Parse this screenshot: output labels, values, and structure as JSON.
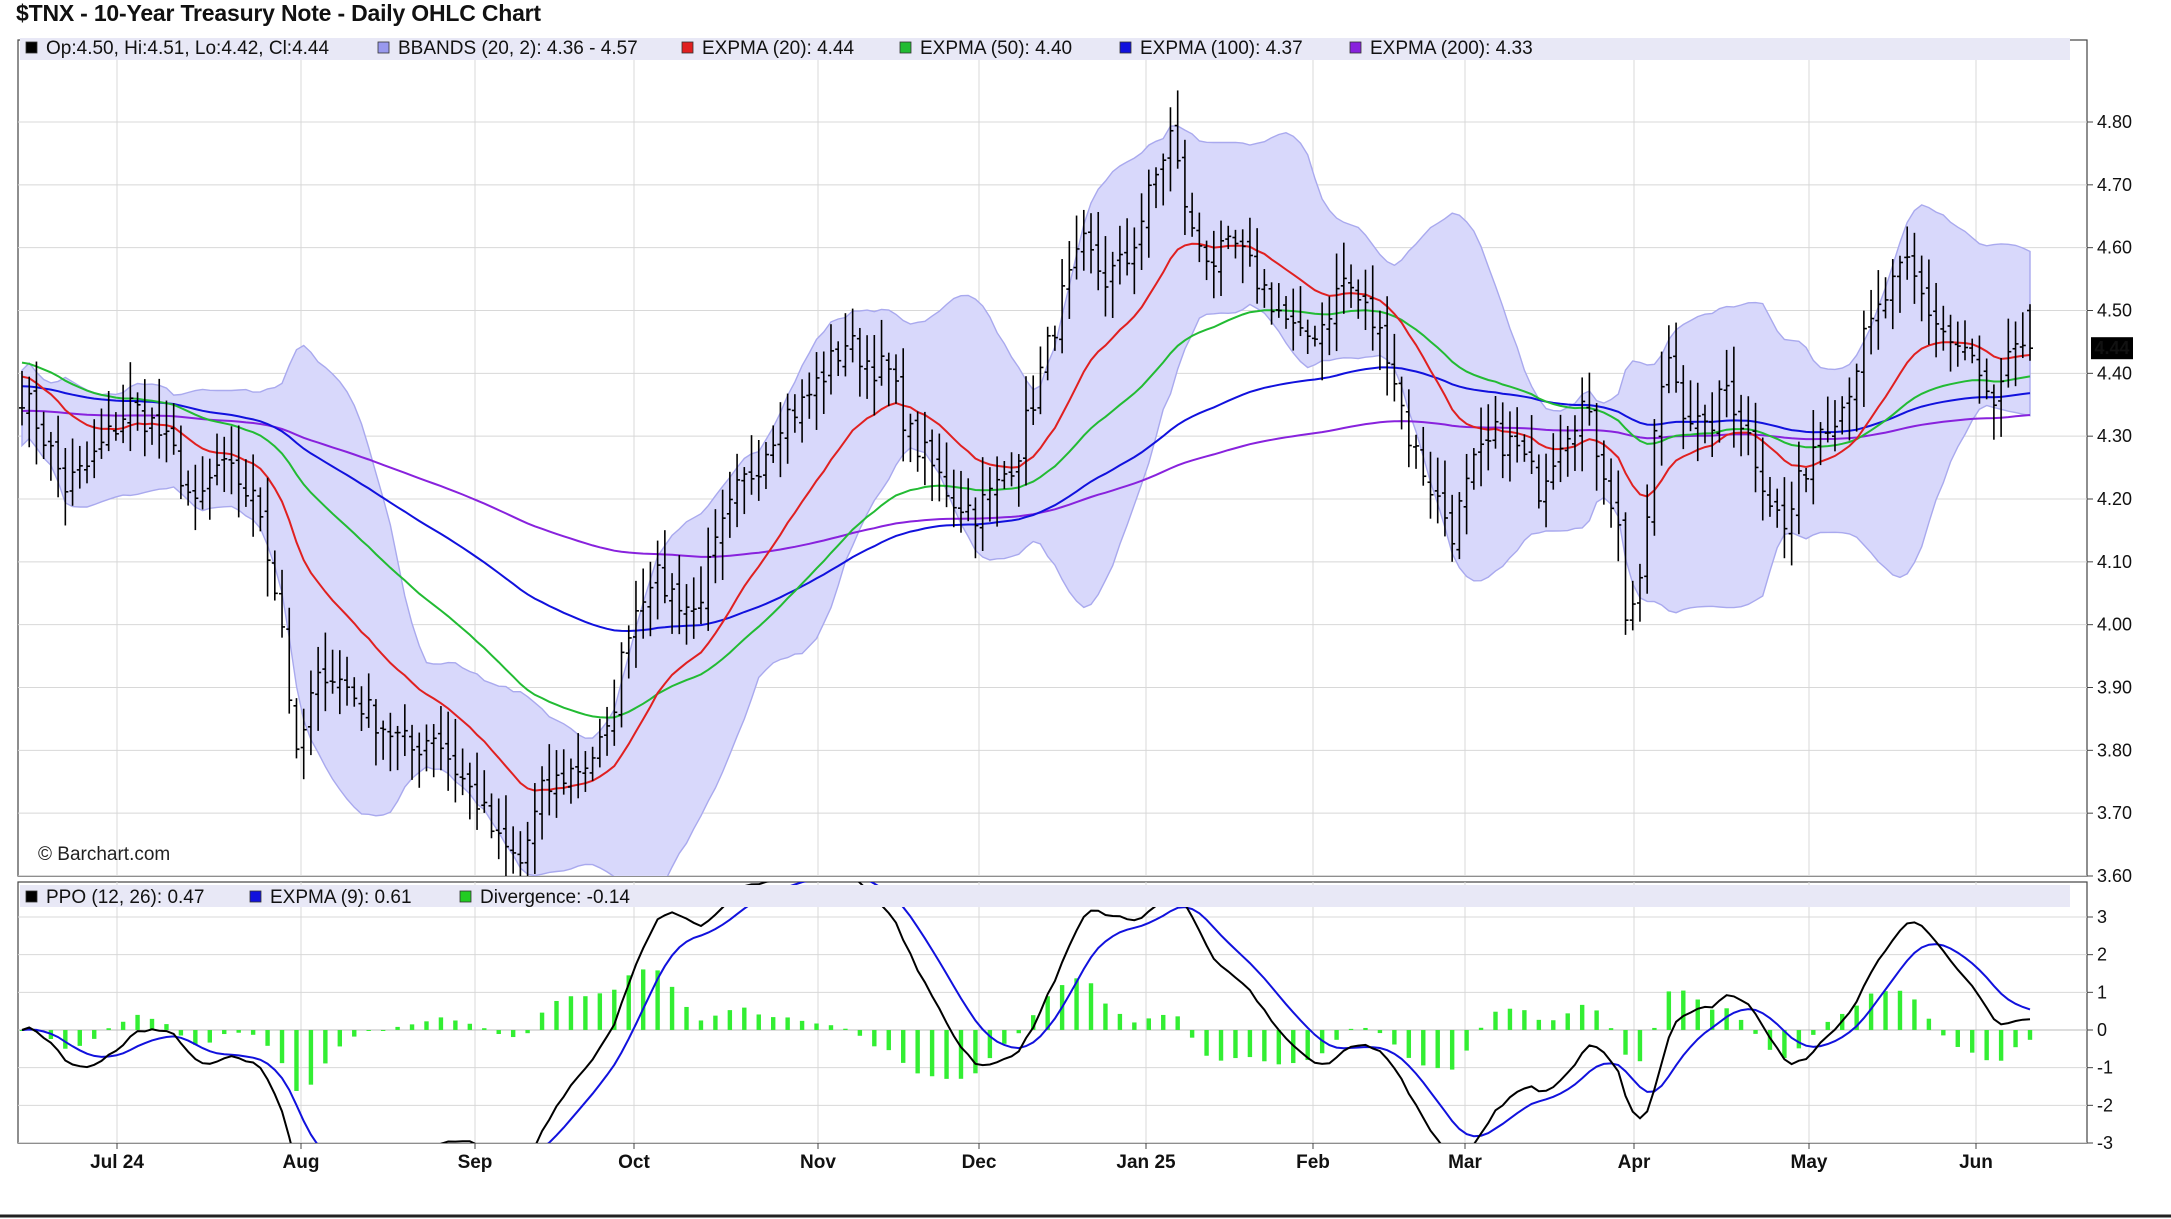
{
  "chart_data": [
    {
      "type": "ohlc",
      "title": "$TNX - 10-Year Treasury Note - Daily OHLC Chart",
      "credit": "© Barchart.com",
      "ylim": [
        3.6,
        4.8
      ],
      "yticks": [
        "4.80",
        "4.70",
        "4.60",
        "4.50",
        "4.40",
        "4.30",
        "4.20",
        "4.10",
        "4.00",
        "3.90",
        "3.80",
        "3.70",
        "3.60"
      ],
      "xticks": [
        "Jul 24",
        "Aug",
        "Sep",
        "Oct",
        "Nov",
        "Dec",
        "Jan 25",
        "Feb",
        "Mar",
        "Apr",
        "May",
        "Jun"
      ],
      "last_price_label": "4.44",
      "legend": [
        {
          "text": "Op:4.50, Hi:4.51, Lo:4.42, Cl:4.44",
          "color": "#000000"
        },
        {
          "text": "BBANDS (20, 2): 4.36 - 4.57",
          "color": "#9999ee"
        },
        {
          "text": "EXPMA (20): 4.44",
          "color": "#e02020"
        },
        {
          "text": "EXPMA (50): 4.40",
          "color": "#22bb33"
        },
        {
          "text": "EXPMA (100): 4.37",
          "color": "#1111dd"
        },
        {
          "text": "EXPMA (200): 4.33",
          "color": "#8822dd"
        }
      ],
      "close_anchors": [
        [
          0,
          4.37
        ],
        [
          3,
          4.3
        ],
        [
          6,
          4.22
        ],
        [
          9,
          4.25
        ],
        [
          12,
          4.3
        ],
        [
          15,
          4.35
        ],
        [
          18,
          4.32
        ],
        [
          21,
          4.27
        ],
        [
          24,
          4.18
        ],
        [
          27,
          4.25
        ],
        [
          30,
          4.23
        ],
        [
          33,
          4.18
        ],
        [
          36,
          4.0
        ],
        [
          38,
          3.78
        ],
        [
          40,
          3.88
        ],
        [
          42,
          3.93
        ],
        [
          45,
          3.9
        ],
        [
          48,
          3.86
        ],
        [
          51,
          3.83
        ],
        [
          54,
          3.8
        ],
        [
          57,
          3.83
        ],
        [
          60,
          3.77
        ],
        [
          63,
          3.72
        ],
        [
          66,
          3.65
        ],
        [
          69,
          3.62
        ],
        [
          72,
          3.73
        ],
        [
          75,
          3.76
        ],
        [
          78,
          3.78
        ],
        [
          81,
          3.82
        ],
        [
          84,
          4.0
        ],
        [
          87,
          4.08
        ],
        [
          90,
          4.05
        ],
        [
          93,
          4.02
        ],
        [
          96,
          4.12
        ],
        [
          99,
          4.21
        ],
        [
          102,
          4.26
        ],
        [
          105,
          4.33
        ],
        [
          108,
          4.35
        ],
        [
          111,
          4.4
        ],
        [
          114,
          4.45
        ],
        [
          117,
          4.42
        ],
        [
          120,
          4.4
        ],
        [
          123,
          4.3
        ],
        [
          126,
          4.25
        ],
        [
          129,
          4.2
        ],
        [
          132,
          4.18
        ],
        [
          135,
          4.22
        ],
        [
          138,
          4.28
        ],
        [
          141,
          4.4
        ],
        [
          144,
          4.52
        ],
        [
          147,
          4.6
        ],
        [
          150,
          4.55
        ],
        [
          153,
          4.58
        ],
        [
          156,
          4.68
        ],
        [
          159,
          4.78
        ],
        [
          162,
          4.62
        ],
        [
          165,
          4.58
        ],
        [
          168,
          4.6
        ],
        [
          171,
          4.55
        ],
        [
          174,
          4.5
        ],
        [
          177,
          4.45
        ],
        [
          180,
          4.48
        ],
        [
          183,
          4.55
        ],
        [
          186,
          4.5
        ],
        [
          189,
          4.44
        ],
        [
          192,
          4.3
        ],
        [
          195,
          4.22
        ],
        [
          198,
          4.15
        ],
        [
          201,
          4.25
        ],
        [
          204,
          4.3
        ],
        [
          207,
          4.28
        ],
        [
          210,
          4.22
        ],
        [
          213,
          4.3
        ],
        [
          216,
          4.35
        ],
        [
          219,
          4.25
        ],
        [
          221,
          4.15
        ],
        [
          222,
          4.02
        ],
        [
          224,
          4.05
        ],
        [
          226,
          4.3
        ],
        [
          228,
          4.43
        ],
        [
          230,
          4.35
        ],
        [
          233,
          4.3
        ],
        [
          236,
          4.38
        ],
        [
          239,
          4.3
        ],
        [
          242,
          4.2
        ],
        [
          244,
          4.15
        ],
        [
          246,
          4.22
        ],
        [
          249,
          4.32
        ],
        [
          252,
          4.35
        ],
        [
          255,
          4.45
        ],
        [
          258,
          4.52
        ],
        [
          261,
          4.57
        ],
        [
          264,
          4.5
        ],
        [
          267,
          4.45
        ],
        [
          270,
          4.42
        ],
        [
          273,
          4.33
        ],
        [
          276,
          4.45
        ],
        [
          278,
          4.44
        ]
      ],
      "series": [
        {
          "name": "EXPMA (20)",
          "color": "#e02020",
          "period": 20,
          "last": 4.44
        },
        {
          "name": "EXPMA (50)",
          "color": "#22bb33",
          "period": 50,
          "last": 4.4
        },
        {
          "name": "EXPMA (100)",
          "color": "#1111dd",
          "period": 100,
          "last": 4.37
        },
        {
          "name": "EXPMA (200)",
          "color": "#8822dd",
          "period": 200,
          "last": 4.33
        },
        {
          "name": "BBANDS (20, 2)",
          "color": "#9999ee",
          "period": 20,
          "last_range": [
            4.36,
            4.57
          ]
        }
      ]
    },
    {
      "type": "line",
      "ylim": [
        -3,
        3
      ],
      "yticks": [
        "3",
        "2",
        "1",
        "0",
        "-1",
        "-2",
        "-3"
      ],
      "legend": [
        {
          "text": "PPO (12, 26): 0.47",
          "color": "#000000"
        },
        {
          "text": "EXPMA (9): 0.61",
          "color": "#1111dd"
        },
        {
          "text": "Divergence: -0.14",
          "color": "#22cc22"
        }
      ],
      "series": [
        {
          "name": "PPO (12, 26)",
          "color": "#000000",
          "last": 0.47
        },
        {
          "name": "EXPMA (9)",
          "color": "#1111dd",
          "last": 0.61
        },
        {
          "name": "Divergence",
          "color": "#33ee33",
          "last": -0.14
        }
      ]
    }
  ]
}
